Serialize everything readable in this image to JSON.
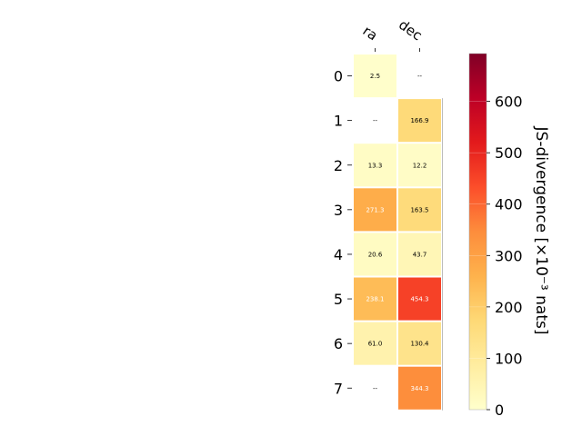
{
  "chart_data": {
    "type": "heatmap",
    "x_categories": [
      "ra",
      "dec"
    ],
    "y_categories": [
      "0",
      "1",
      "2",
      "3",
      "4",
      "5",
      "6",
      "7"
    ],
    "values": [
      [
        2.5,
        null
      ],
      [
        null,
        166.9
      ],
      [
        13.3,
        12.2
      ],
      [
        271.3,
        163.5
      ],
      [
        20.6,
        43.7
      ],
      [
        238.1,
        454.3
      ],
      [
        61.0,
        130.4
      ],
      [
        null,
        344.3
      ]
    ],
    "cell_labels": [
      [
        "2.5",
        "--"
      ],
      [
        "--",
        "166.9"
      ],
      [
        "13.3",
        "12.2"
      ],
      [
        "271.3",
        "163.5"
      ],
      [
        "20.6",
        "43.7"
      ],
      [
        "238.1",
        "454.3"
      ],
      [
        "61.0",
        "130.4"
      ],
      [
        "--",
        "344.3"
      ]
    ],
    "colorbar": {
      "label": "JS-divergence [×10⁻³ nats]",
      "ticks": [
        "0",
        "100",
        "200",
        "300",
        "400",
        "500",
        "600"
      ],
      "tick_values": [
        0,
        100,
        200,
        300,
        400,
        500,
        600
      ],
      "range": [
        0,
        693
      ],
      "colormap": "YlOrRd"
    }
  }
}
